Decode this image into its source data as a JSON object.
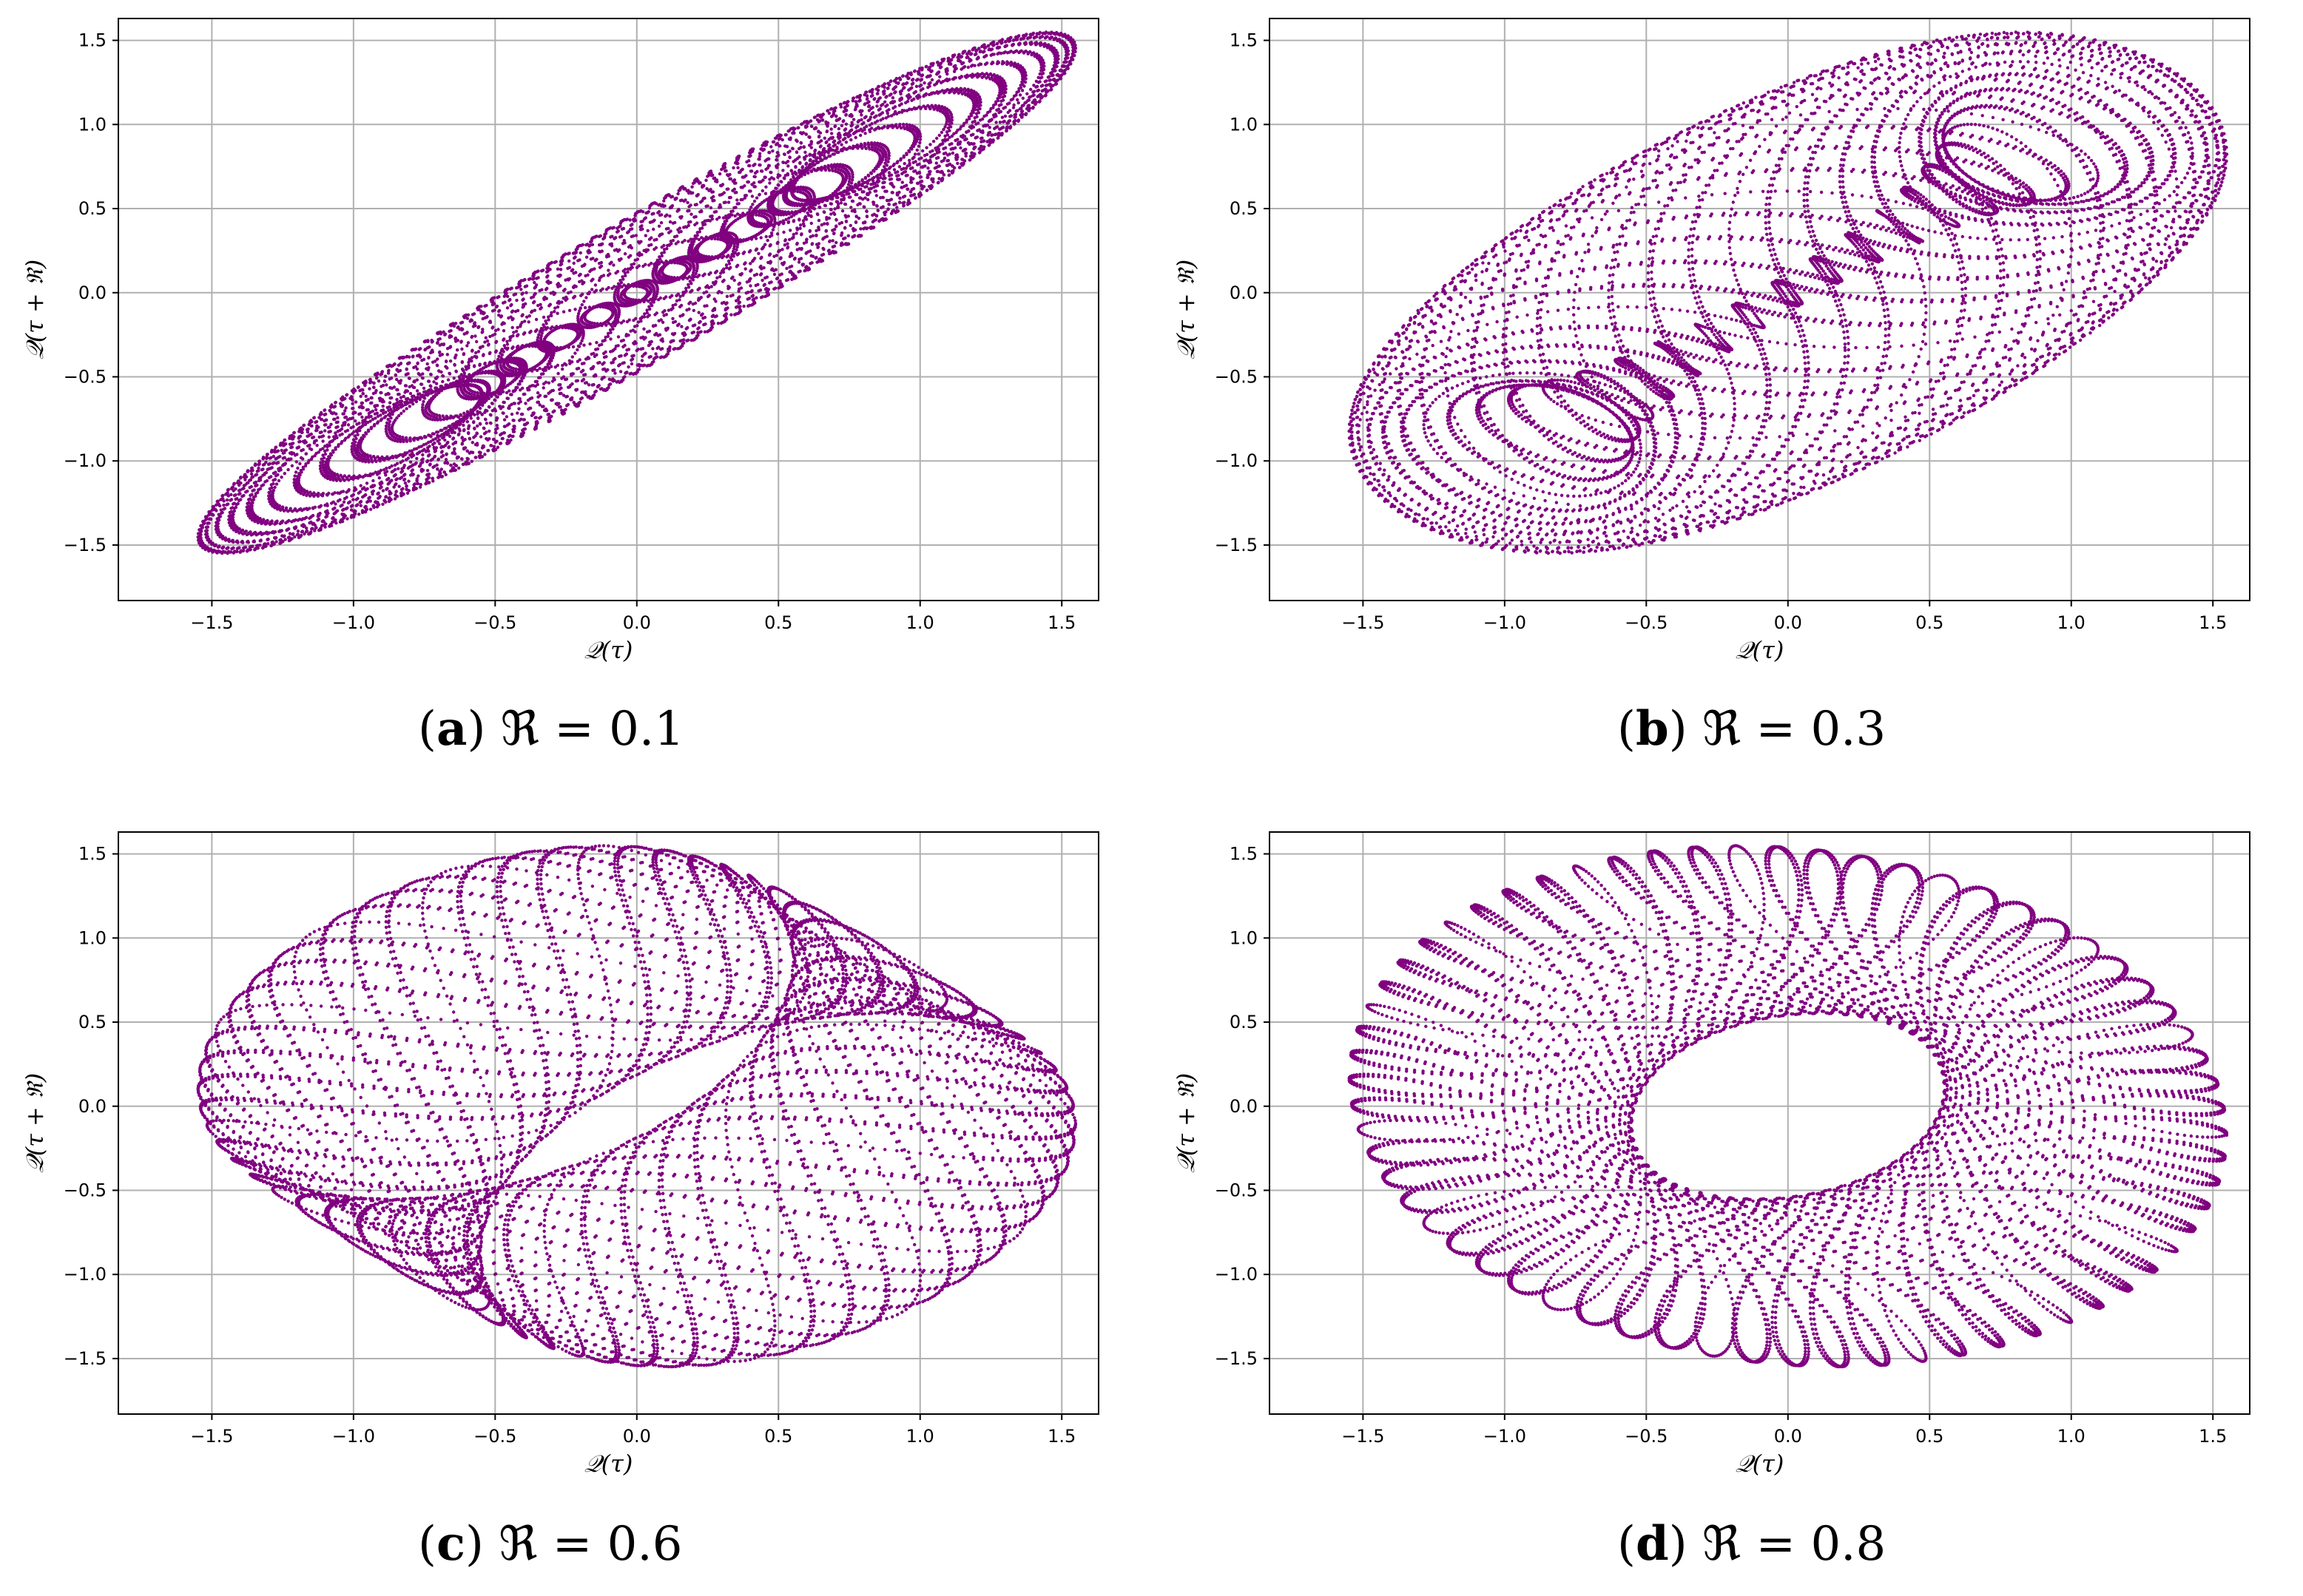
{
  "chart_data": [
    {
      "type": "scatter",
      "panel_letter": "a",
      "caption": "ℜ = 0.1",
      "delay": 0.1,
      "xlabel": "𝒬(τ)",
      "ylabel": "𝒬(τ + ℜ)",
      "xticks": [
        "−1.5",
        "−1.0",
        "−0.5",
        "0.0",
        "0.5",
        "1.0",
        "1.5"
      ],
      "yticks": [
        "−1.5",
        "−1.0",
        "−0.5",
        "0.0",
        "0.5",
        "1.0",
        "1.5"
      ],
      "xlim": [
        -1.83,
        1.63
      ],
      "ylim": [
        -1.83,
        1.63
      ],
      "grid": true,
      "marker_color": "#800080",
      "series": [
        {
          "type": "torus-attractor",
          "points_sample": [
            [
              -1.65,
              -1.65
            ],
            [
              -0.48,
              -0.48
            ],
            [
              0.6,
              0.6
            ],
            [
              1.47,
              1.47
            ]
          ]
        }
      ]
    },
    {
      "type": "scatter",
      "panel_letter": "b",
      "caption": "ℜ = 0.3",
      "delay": 0.3,
      "xlabel": "𝒬(τ)",
      "ylabel": "𝒬(τ + ℜ)",
      "xticks": [
        "−1.5",
        "−1.0",
        "−0.5",
        "0.0",
        "0.5",
        "1.0",
        "1.5"
      ],
      "yticks": [
        "−1.5",
        "−1.0",
        "−0.5",
        "0.0",
        "0.5",
        "1.0",
        "1.5"
      ],
      "xlim": [
        -1.83,
        1.63
      ],
      "ylim": [
        -1.83,
        1.63
      ],
      "grid": true,
      "marker_color": "#800080",
      "series": [
        {
          "type": "torus-attractor",
          "points_sample": [
            [
              -1.65,
              -1.3
            ],
            [
              -0.5,
              -0.5
            ],
            [
              0.6,
              0.6
            ],
            [
              1.47,
              1.1
            ]
          ]
        }
      ]
    },
    {
      "type": "scatter",
      "panel_letter": "c",
      "caption": "ℜ = 0.6",
      "delay": 0.6,
      "xlabel": "𝒬(τ)",
      "ylabel": "𝒬(τ + ℜ)",
      "xticks": [
        "−1.5",
        "−1.0",
        "−0.5",
        "0.0",
        "0.5",
        "1.0",
        "1.5"
      ],
      "yticks": [
        "−1.5",
        "−1.0",
        "−0.5",
        "0.0",
        "0.5",
        "1.0",
        "1.5"
      ],
      "xlim": [
        -1.83,
        1.63
      ],
      "ylim": [
        -1.83,
        1.63
      ],
      "grid": true,
      "marker_color": "#800080",
      "series": [
        {
          "type": "torus-attractor",
          "points_sample": [
            [
              -1.65,
              -0.7
            ],
            [
              -0.5,
              -0.5
            ],
            [
              0.55,
              0.55
            ],
            [
              1.47,
              0.2
            ]
          ]
        }
      ]
    },
    {
      "type": "scatter",
      "panel_letter": "d",
      "caption": "ℜ = 0.8",
      "delay": 0.8,
      "xlabel": "𝒬(τ)",
      "ylabel": "𝒬(τ + ℜ)",
      "xticks": [
        "−1.5",
        "−1.0",
        "−0.5",
        "0.0",
        "0.5",
        "1.0",
        "1.5"
      ],
      "yticks": [
        "−1.5",
        "−1.0",
        "−0.5",
        "0.0",
        "0.5",
        "1.0",
        "1.5"
      ],
      "xlim": [
        -1.83,
        1.63
      ],
      "ylim": [
        -1.83,
        1.63
      ],
      "grid": true,
      "marker_color": "#800080",
      "series": [
        {
          "type": "torus-attractor",
          "points_sample": [
            [
              -1.65,
              0.6
            ],
            [
              -0.5,
              -0.5
            ],
            [
              0.55,
              0.55
            ],
            [
              1.47,
              -0.9
            ]
          ]
        }
      ]
    }
  ]
}
